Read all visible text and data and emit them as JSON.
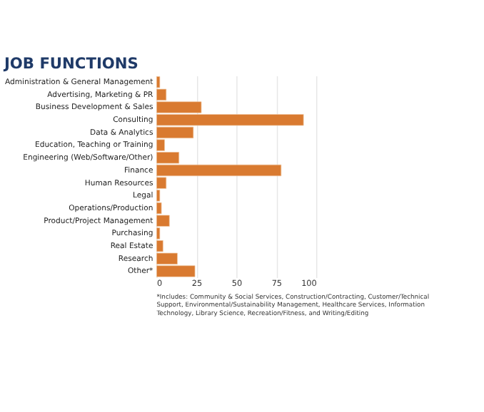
{
  "chart_data": {
    "type": "bar",
    "orientation": "horizontal",
    "title": "JOB FUNCTIONS",
    "categories": [
      "Administration & General Management",
      "Advertising, Marketing & PR",
      "Business Development & Sales",
      "Consulting",
      "Data & Analytics",
      "Education, Teaching or Training",
      "Engineering (Web/Software/Other)",
      "Finance",
      "Human Resources",
      "Legal",
      "Operations/Production",
      "Product/Project Management",
      "Purchasing",
      "Real Estate",
      "Research",
      "Other*"
    ],
    "values": [
      2,
      6,
      28,
      92,
      23,
      5,
      14,
      78,
      6,
      2,
      3,
      8,
      2,
      4,
      13,
      24
    ],
    "color": "#d97a30",
    "xlim": [
      0,
      100
    ],
    "xticks": [
      0,
      25,
      50,
      75,
      100
    ],
    "grid": "x",
    "annotations": [
      "*Includes: Community & Social Services, Construction/Contracting, Customer/Technical Support, Environmental/Sustainability Management, Healthcare Services, Information Technology, Library Science, Recreation/Fitness, and Writing/Editing"
    ]
  }
}
